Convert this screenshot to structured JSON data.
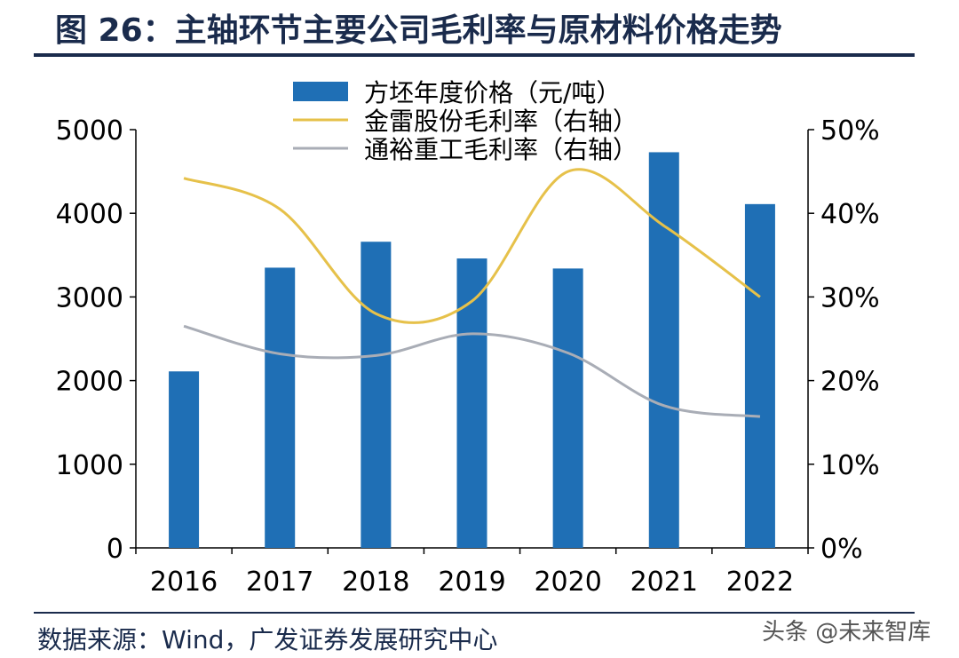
{
  "figure": {
    "title": "图 26：主轴环节主要公司毛利率与原材料价格走势",
    "source": "数据来源：Wind，广发证券发展研究中心",
    "watermark": "头条 @未来智库"
  },
  "chart_data": {
    "type": "bar",
    "categories": [
      "2016",
      "2017",
      "2018",
      "2019",
      "2020",
      "2021",
      "2022"
    ],
    "series": [
      {
        "name": "方坯年度价格（元/吨）",
        "kind": "bar",
        "axis": "left",
        "color": "#1f6fb5",
        "values": [
          2110,
          3350,
          3660,
          3460,
          3340,
          4730,
          4110
        ]
      },
      {
        "name": "金雷股份毛利率（右轴）",
        "kind": "line",
        "axis": "right",
        "color": "#e6c14a",
        "values": [
          44.2,
          40.5,
          28.0,
          29.5,
          45.0,
          38.5,
          30.0
        ]
      },
      {
        "name": "通裕重工毛利率（右轴）",
        "kind": "line",
        "axis": "right",
        "color": "#a9adb6",
        "values": [
          26.5,
          23.2,
          23.0,
          25.6,
          23.3,
          17.0,
          15.7
        ]
      }
    ],
    "yleft": {
      "min": 0,
      "max": 5000,
      "ticks": [
        "0",
        "1000",
        "2000",
        "3000",
        "4000",
        "5000"
      ]
    },
    "yright": {
      "min": 0,
      "max": 50,
      "ticks": [
        "0%",
        "10%",
        "20%",
        "30%",
        "40%",
        "50%"
      ]
    },
    "legend_position": "top-center"
  }
}
